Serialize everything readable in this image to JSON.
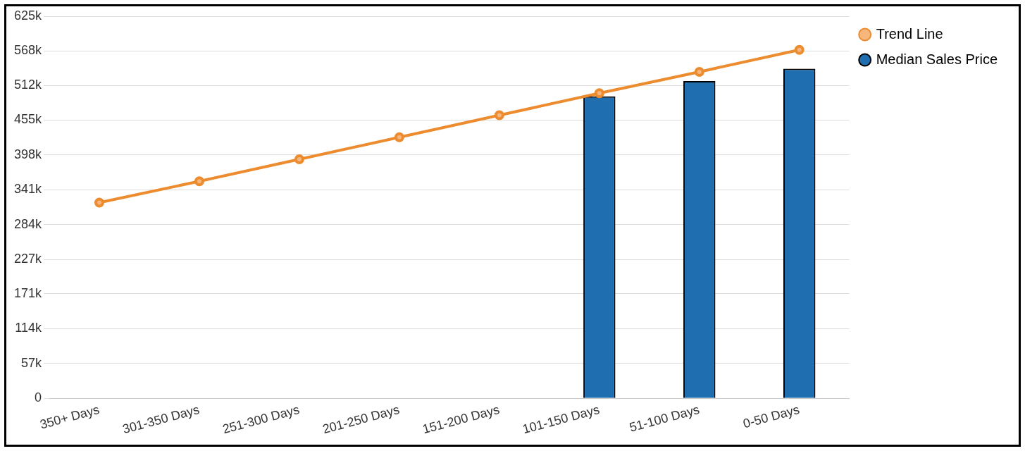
{
  "chart_data": {
    "type": "bar",
    "categories": [
      "350+ Days",
      "301-350 Days",
      "251-300 Days",
      "201-250 Days",
      "151-200 Days",
      "101-150 Days",
      "51-100 Days",
      "0-50 Days"
    ],
    "series": [
      {
        "name": "Trend Line",
        "type": "line",
        "color": "#ed8b2f",
        "values": [
          320000,
          355000,
          391000,
          427000,
          463000,
          499000,
          534000,
          570000
        ]
      },
      {
        "name": "Median Sales Price",
        "color": "#1f6eb0",
        "values": [
          null,
          null,
          null,
          null,
          null,
          494000,
          519000,
          539000
        ]
      }
    ],
    "ylim": [
      0,
      625000
    ],
    "yticks": [
      0,
      {
        "value": 57000,
        "label": "57k"
      },
      {
        "value": 114000,
        "label": "114k"
      },
      {
        "value": 171000,
        "label": "171k"
      },
      {
        "value": 227000,
        "label": "227k"
      },
      {
        "value": 284000,
        "label": "284k"
      },
      {
        "value": 341000,
        "label": "341k"
      },
      {
        "value": 398000,
        "label": "398k"
      },
      {
        "value": 455000,
        "label": "455k"
      },
      {
        "value": 512000,
        "label": "512k"
      },
      {
        "value": 568000,
        "label": "568k"
      },
      {
        "value": 625000,
        "label": "625k"
      }
    ],
    "grid": "y",
    "legend": "top right",
    "marker": "circle"
  }
}
